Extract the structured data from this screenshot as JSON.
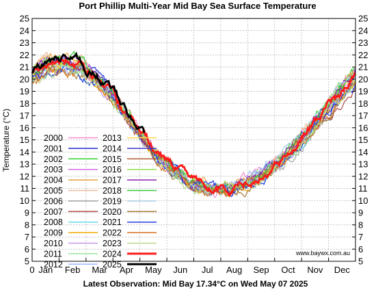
{
  "chart_data": {
    "type": "line",
    "title": "Port Phillip Multi-Year Mid Bay Sea Surface Temperature",
    "ylabel": "Temperature (°C)",
    "footer": "Latest Observation: Mid Bay 17.34°C on Wed May 07 2025",
    "watermark": "www.baywx.com.au",
    "ylim": [
      5,
      25
    ],
    "yticks": [
      5,
      6,
      7,
      8,
      9,
      10,
      11,
      12,
      13,
      14,
      15,
      16,
      17,
      18,
      19,
      20,
      21,
      22,
      23,
      24,
      25
    ],
    "xlim": [
      0,
      12
    ],
    "xtick_zero": "0",
    "months": [
      "Jan",
      "Feb",
      "Mar",
      "Apr",
      "May",
      "Jun",
      "Jul",
      "Aug",
      "Sep",
      "Oct",
      "Nov",
      "Dec"
    ],
    "grid": true,
    "legend_position": "bottom-left",
    "series": [
      {
        "name": "2000",
        "color": "#f78bd0"
      },
      {
        "name": "2001",
        "color": "#1f2fcf"
      },
      {
        "name": "2002",
        "color": "#2bd12b"
      },
      {
        "name": "2003",
        "color": "#d06ae6"
      },
      {
        "name": "2004",
        "color": "#e8a23c"
      },
      {
        "name": "2005",
        "color": "#f0b89c"
      },
      {
        "name": "2006",
        "color": "#a3a3a3"
      },
      {
        "name": "2007",
        "color": "#b24a4a"
      },
      {
        "name": "2008",
        "color": "#66d6e8"
      },
      {
        "name": "2009",
        "color": "#f0a800"
      },
      {
        "name": "2010",
        "color": "#c597e8"
      },
      {
        "name": "2011",
        "color": "#9be39b"
      },
      {
        "name": "2012",
        "color": "#9eb6ff"
      },
      {
        "name": "2013",
        "color": "#ffd84a"
      },
      {
        "name": "2014",
        "color": "#3b3bc9"
      },
      {
        "name": "2015",
        "color": "#b05a2a"
      },
      {
        "name": "2016",
        "color": "#8de24a"
      },
      {
        "name": "2017",
        "color": "#8a20b0"
      },
      {
        "name": "2018",
        "color": "#33c833"
      },
      {
        "name": "2019",
        "color": "#a8cfe8"
      },
      {
        "name": "2020",
        "color": "#a77a3a"
      },
      {
        "name": "2021",
        "color": "#1c3de0"
      },
      {
        "name": "2022",
        "color": "#d8701c"
      },
      {
        "name": "2023",
        "color": "#b9d98a"
      },
      {
        "name": "2024",
        "color": "#ff1a1a"
      },
      {
        "name": "2025",
        "color": "#000000"
      }
    ]
  }
}
